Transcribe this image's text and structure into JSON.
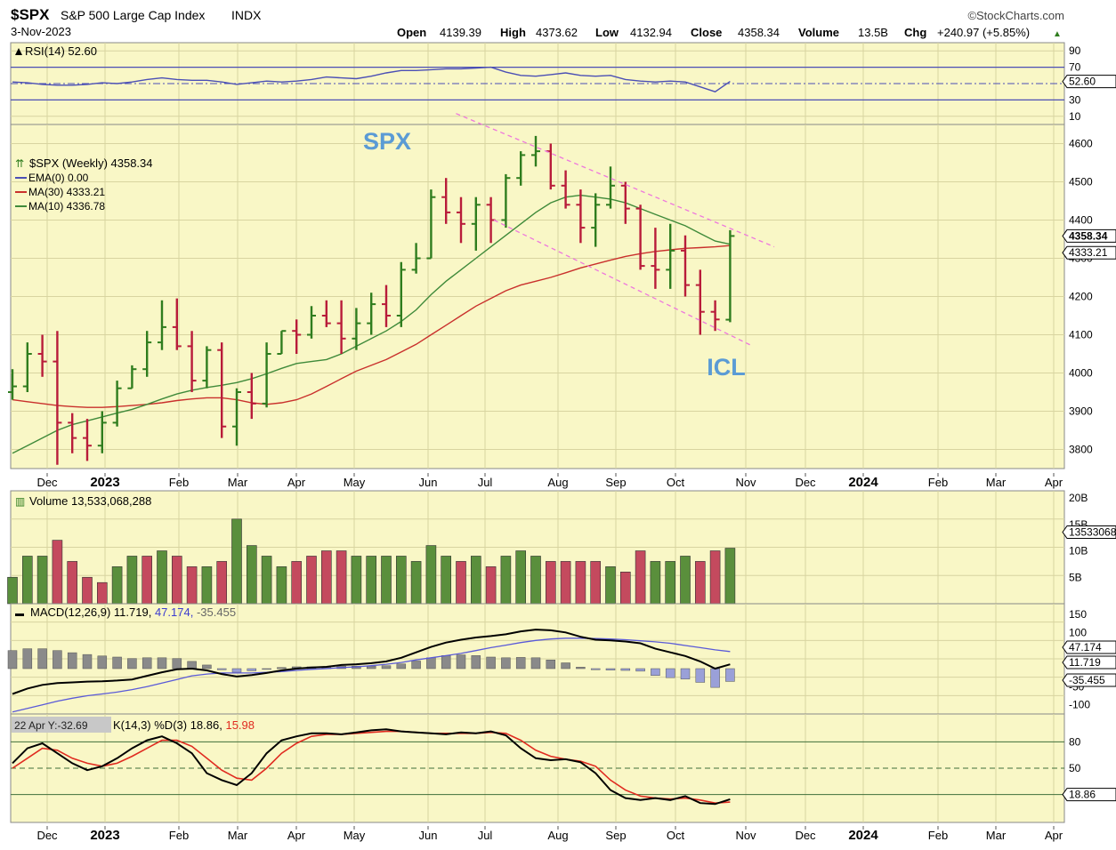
{
  "header": {
    "symbol": "$SPX",
    "name": "S&P 500 Large Cap Index",
    "exchange": "INDX",
    "brand": "©StockCharts.com",
    "date": "3-Nov-2023",
    "open_label": "Open",
    "open_value": "4139.39",
    "high_label": "High",
    "high_value": "4373.62",
    "low_label": "Low",
    "low_value": "4132.94",
    "close_label": "Close",
    "close_value": "4358.34",
    "volume_label": "Volume",
    "volume_value": "13.5B",
    "chg_label": "Chg",
    "chg_value": "+240.97 (+5.85%)",
    "chg_arrow": "▲"
  },
  "annotations": {
    "spx_label": "SPX",
    "icl_label": "ICL",
    "crosshair_label": "22 Apr Y:-32.69"
  },
  "colors": {
    "panel_bg": "#f9f7c6",
    "grid": "#d8d4a0",
    "up_bar": "#2f7d1e",
    "down_bar": "#b81c3a",
    "vol_up": "#5a8f3c",
    "vol_down": "#c44a5e",
    "ma30": "#c9302c",
    "ma10": "#3f8a3a",
    "rsi": "#4b4fb5",
    "macd_line": "#000000",
    "macd_signal": "#5a5ad8",
    "hist": "#8a8a8a",
    "hist_neg": "#9aa0d8",
    "stoch_k": "#000000",
    "stoch_d": "#e02b20",
    "channel": "#ee77dd",
    "annotation": "#5b9bd5"
  },
  "x_axis": {
    "labels": [
      "Dec",
      "2023",
      "Feb",
      "Mar",
      "Apr",
      "May",
      "Jun",
      "Jul",
      "Aug",
      "Sep",
      "Oct",
      "Nov",
      "Dec",
      "2024",
      "Feb",
      "Mar",
      "Apr"
    ]
  },
  "chart_data": [
    {
      "id": "rsi",
      "type": "line",
      "legend": "RSI(14) 52.60",
      "ylim": [
        0,
        100
      ],
      "ticks": [
        "90",
        "70",
        "30",
        "10"
      ],
      "levels": [
        70,
        50,
        30
      ],
      "last_value": "52.60",
      "values": [
        52,
        51,
        49,
        48,
        48,
        49,
        51,
        50,
        52,
        55,
        57,
        55,
        54,
        54,
        52,
        49,
        51,
        53,
        52,
        53,
        55,
        58,
        57,
        56,
        59,
        63,
        66,
        66,
        67,
        68,
        68,
        69,
        70,
        64,
        60,
        59,
        61,
        63,
        60,
        59,
        60,
        55,
        53,
        52,
        53,
        52,
        46,
        40,
        52.6
      ]
    },
    {
      "id": "price",
      "type": "ohlc",
      "legend": "$SPX (Weekly) 4358.34",
      "indicators": [
        {
          "label": "EMA(0) 0.00",
          "color": "#4b4fb5"
        },
        {
          "label": "MA(30) 4333.21",
          "color": "#c9302c"
        },
        {
          "label": "MA(10) 4336.78",
          "color": "#3f8a3a"
        }
      ],
      "ylim": [
        3750,
        4650
      ],
      "ticks": [
        "4600",
        "4500",
        "4400",
        "4300",
        "4200",
        "4100",
        "4000",
        "3900",
        "3800"
      ],
      "last_value": "4358.34",
      "ma30_value": "4333.21",
      "ohlc": [
        [
          3950,
          4010,
          3930,
          3965
        ],
        [
          3965,
          4080,
          3950,
          4050
        ],
        [
          4050,
          4100,
          3990,
          4030
        ],
        [
          4030,
          4110,
          3760,
          3870
        ],
        [
          3870,
          3895,
          3790,
          3830
        ],
        [
          3830,
          3880,
          3770,
          3810
        ],
        [
          3810,
          3900,
          3790,
          3870
        ],
        [
          3870,
          3980,
          3860,
          3960
        ],
        [
          3960,
          4020,
          3960,
          4010
        ],
        [
          4010,
          4110,
          3990,
          4080
        ],
        [
          4080,
          4190,
          4060,
          4120
        ],
        [
          4120,
          4195,
          4060,
          4070
        ],
        [
          4070,
          4110,
          3950,
          3980
        ],
        [
          3980,
          4070,
          3960,
          4060
        ],
        [
          4060,
          4080,
          3830,
          3860
        ],
        [
          3860,
          3960,
          3810,
          3950
        ],
        [
          3950,
          4000,
          3880,
          3920
        ],
        [
          3920,
          4080,
          3910,
          4050
        ],
        [
          4050,
          4110,
          4050,
          4110
        ],
        [
          4110,
          4140,
          4050,
          4100
        ],
        [
          4100,
          4175,
          4090,
          4150
        ],
        [
          4150,
          4190,
          4120,
          4130
        ],
        [
          4130,
          4190,
          4050,
          4090
        ],
        [
          4090,
          4170,
          4060,
          4130
        ],
        [
          4130,
          4210,
          4100,
          4180
        ],
        [
          4180,
          4230,
          4120,
          4150
        ],
        [
          4150,
          4290,
          4120,
          4270
        ],
        [
          4270,
          4340,
          4260,
          4300
        ],
        [
          4300,
          4480,
          4300,
          4460
        ],
        [
          4460,
          4510,
          4390,
          4420
        ],
        [
          4420,
          4460,
          4340,
          4390
        ],
        [
          4390,
          4460,
          4320,
          4440
        ],
        [
          4440,
          4460,
          4340,
          4400
        ],
        [
          4400,
          4520,
          4380,
          4510
        ],
        [
          4510,
          4580,
          4490,
          4570
        ],
        [
          4570,
          4620,
          4540,
          4580
        ],
        [
          4580,
          4600,
          4480,
          4490
        ],
        [
          4490,
          4530,
          4430,
          4440
        ],
        [
          4440,
          4480,
          4340,
          4380
        ],
        [
          4380,
          4470,
          4330,
          4440
        ],
        [
          4440,
          4540,
          4430,
          4490
        ],
        [
          4490,
          4500,
          4390,
          4430
        ],
        [
          4430,
          4440,
          4270,
          4280
        ],
        [
          4280,
          4380,
          4220,
          4270
        ],
        [
          4270,
          4390,
          4220,
          4320
        ],
        [
          4320,
          4360,
          4200,
          4230
        ],
        [
          4230,
          4270,
          4100,
          4160
        ],
        [
          4160,
          4190,
          4110,
          4140
        ],
        [
          4139.39,
          4373.62,
          4132.94,
          4358.34
        ]
      ],
      "ma10": [
        3790,
        3810,
        3830,
        3850,
        3865,
        3875,
        3885,
        3895,
        3905,
        3918,
        3932,
        3945,
        3955,
        3962,
        3968,
        3975,
        3985,
        3998,
        4012,
        4025,
        4030,
        4035,
        4050,
        4070,
        4090,
        4110,
        4135,
        4165,
        4205,
        4240,
        4270,
        4300,
        4330,
        4360,
        4390,
        4420,
        4445,
        4460,
        4465,
        4460,
        4455,
        4445,
        4430,
        4415,
        4400,
        4385,
        4365,
        4345,
        4336.78
      ],
      "ma30": [
        3930,
        3925,
        3920,
        3915,
        3912,
        3910,
        3910,
        3912,
        3915,
        3918,
        3922,
        3928,
        3932,
        3935,
        3935,
        3930,
        3922,
        3918,
        3922,
        3930,
        3945,
        3965,
        3985,
        4005,
        4020,
        4035,
        4055,
        4075,
        4100,
        4125,
        4150,
        4175,
        4195,
        4215,
        4230,
        4240,
        4250,
        4262,
        4275,
        4285,
        4295,
        4305,
        4312,
        4318,
        4322,
        4326,
        4328,
        4330,
        4333.21
      ],
      "channel": {
        "upper": [
          [
            38,
            4565
          ],
          [
            49,
            4450
          ]
        ],
        "lower": [
          [
            38,
            4420
          ],
          [
            49,
            4120
          ]
        ]
      }
    },
    {
      "id": "volume",
      "type": "bar",
      "legend": "Volume 13,533,068,288",
      "ylim": [
        0,
        20
      ],
      "ticks": [
        "20B",
        "15B",
        "10B",
        "5B"
      ],
      "last_value": "13533068288",
      "values": [
        5,
        9,
        9,
        12,
        8,
        5,
        4,
        7,
        9,
        9,
        10,
        9,
        7,
        7,
        8,
        16,
        11,
        9,
        7,
        8,
        9,
        10,
        10,
        9,
        9,
        9,
        9,
        8,
        11,
        9,
        8,
        9,
        7,
        9,
        10,
        9,
        8,
        8,
        8,
        8,
        7,
        6,
        10,
        8,
        8,
        9,
        8,
        10,
        10.5
      ],
      "up": [
        1,
        1,
        1,
        0,
        0,
        0,
        0,
        1,
        1,
        0,
        1,
        0,
        0,
        1,
        0,
        1,
        1,
        1,
        1,
        0,
        0,
        0,
        0,
        1,
        1,
        1,
        1,
        1,
        1,
        1,
        0,
        1,
        0,
        1,
        1,
        1,
        0,
        0,
        0,
        0,
        1,
        0,
        0,
        1,
        1,
        1,
        0,
        0,
        1
      ]
    },
    {
      "id": "macd",
      "type": "line",
      "legend_prefix": "MACD(12,26,9)",
      "legend_macd": "11.719",
      "legend_signal": "47.174",
      "legend_hist": "-35.455",
      "ylim": [
        -150,
        150
      ],
      "ticks": [
        "150",
        "100",
        "50",
        "-50",
        "-100"
      ],
      "last_values": [
        "47.174",
        "11.719",
        "-35.455"
      ],
      "macd": [
        -70,
        -55,
        -45,
        -40,
        -38,
        -36,
        -35,
        -33,
        -30,
        -20,
        -10,
        -2,
        0,
        -5,
        -15,
        -22,
        -18,
        -12,
        -5,
        0,
        3,
        5,
        10,
        12,
        15,
        20,
        30,
        45,
        60,
        72,
        80,
        86,
        90,
        95,
        103,
        108,
        106,
        100,
        88,
        80,
        78,
        75,
        70,
        55,
        45,
        35,
        20,
        0,
        11.719
      ],
      "signal": [
        -120,
        -110,
        -100,
        -90,
        -82,
        -75,
        -70,
        -65,
        -58,
        -50,
        -40,
        -30,
        -20,
        -15,
        -12,
        -12,
        -12,
        -10,
        -8,
        -5,
        -2,
        0,
        3,
        5,
        8,
        12,
        17,
        24,
        30,
        36,
        42,
        50,
        58,
        65,
        72,
        78,
        82,
        84,
        84,
        83,
        82,
        80,
        77,
        74,
        70,
        64,
        58,
        52,
        47.174
      ],
      "hist": [
        50,
        55,
        55,
        50,
        44,
        39,
        35,
        32,
        28,
        30,
        30,
        28,
        20,
        10,
        -3,
        -10,
        -6,
        -2,
        3,
        5,
        5,
        5,
        7,
        7,
        7,
        8,
        13,
        21,
        30,
        36,
        38,
        36,
        32,
        30,
        31,
        30,
        24,
        16,
        4,
        -3,
        -4,
        -5,
        -7,
        -19,
        -25,
        -29,
        -38,
        -52,
        -35.455
      ]
    },
    {
      "id": "stoch",
      "type": "line",
      "legend_prefix": "K(14,3) %D(3)",
      "legend_k": "18.86",
      "legend_d": "15.98",
      "ylim": [
        0,
        100
      ],
      "ticks": [
        "80",
        "50"
      ],
      "levels": [
        80,
        50,
        20
      ],
      "last_value": "18.86",
      "k": [
        55,
        70,
        75,
        65,
        55,
        48,
        52,
        60,
        70,
        78,
        82,
        75,
        65,
        45,
        38,
        33,
        45,
        65,
        78,
        82,
        85,
        85,
        84,
        86,
        88,
        89,
        87,
        86,
        85,
        84,
        86,
        85,
        87,
        83,
        70,
        60,
        58,
        59,
        56,
        45,
        28,
        20,
        18,
        20,
        18,
        22,
        15,
        14,
        18.86
      ],
      "d": [
        50,
        60,
        70,
        68,
        60,
        55,
        52,
        55,
        62,
        70,
        78,
        78,
        72,
        60,
        48,
        40,
        38,
        50,
        65,
        75,
        82,
        84,
        84,
        85,
        86,
        87,
        87,
        86,
        85,
        85,
        85,
        85,
        86,
        85,
        78,
        68,
        62,
        59,
        57,
        52,
        38,
        28,
        22,
        20,
        19,
        20,
        18,
        15,
        15.98
      ]
    }
  ]
}
